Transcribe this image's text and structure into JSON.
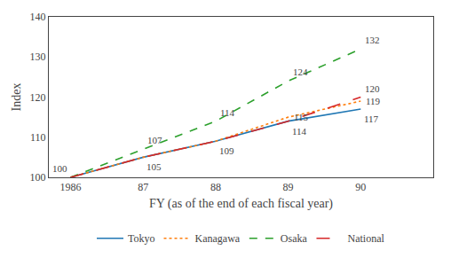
{
  "chart_data": {
    "type": "line",
    "x": [
      1986,
      1987,
      1988,
      1989,
      1990
    ],
    "series": [
      {
        "name": "Tokyo",
        "values": [
          100,
          105,
          109,
          114,
          117
        ],
        "line_style": "solid"
      },
      {
        "name": "Kanagawa",
        "values": [
          100,
          105,
          109,
          115,
          119
        ],
        "line_style": "dot"
      },
      {
        "name": "Osaka",
        "values": [
          100,
          107,
          114,
          124,
          132
        ],
        "line_style": "dash"
      },
      {
        "name": "National",
        "values": [
          100,
          105,
          109,
          114,
          120
        ],
        "line_style": "longdash"
      }
    ],
    "xlabel": "FY (as of the end of each fiscal year)",
    "ylabel": "Index",
    "xlim": [
      1985.7,
      1991.0
    ],
    "xticks": [
      1986,
      {
        "value": 1987,
        "label": "87"
      },
      {
        "value": 1988,
        "label": "88"
      },
      {
        "value": 1989,
        "label": "89"
      },
      {
        "value": 1990,
        "label": "90"
      }
    ],
    "ylim": [
      100,
      140
    ],
    "yticks": [
      100,
      110,
      120,
      130,
      140
    ],
    "grid": false,
    "legend": "bottom",
    "annotations": [
      {
        "series": "Tokyo",
        "x": 1986,
        "y": 100,
        "text": "100"
      },
      {
        "series": "Tokyo",
        "x": 1987,
        "y": 105,
        "text": "105"
      },
      {
        "series": "Tokyo",
        "x": 1988,
        "y": 109,
        "text": "109"
      },
      {
        "series": "Tokyo",
        "x": 1989,
        "y": 114,
        "text": "114"
      },
      {
        "series": "Tokyo",
        "x": 1990,
        "y": 117,
        "text": "117"
      },
      {
        "series": "Kanagawa",
        "x": 1989,
        "y": 115,
        "text": "115"
      },
      {
        "series": "Kanagawa",
        "x": 1990,
        "y": 119,
        "text": "119"
      },
      {
        "series": "Osaka",
        "x": 1987,
        "y": 107,
        "text": "107"
      },
      {
        "series": "Osaka",
        "x": 1988,
        "y": 114,
        "text": "114"
      },
      {
        "series": "Osaka",
        "x": 1989,
        "y": 124,
        "text": "124"
      },
      {
        "series": "Osaka",
        "x": 1990,
        "y": 132,
        "text": "132"
      },
      {
        "series": "National",
        "x": 1990,
        "y": 120,
        "text": "120"
      }
    ]
  }
}
